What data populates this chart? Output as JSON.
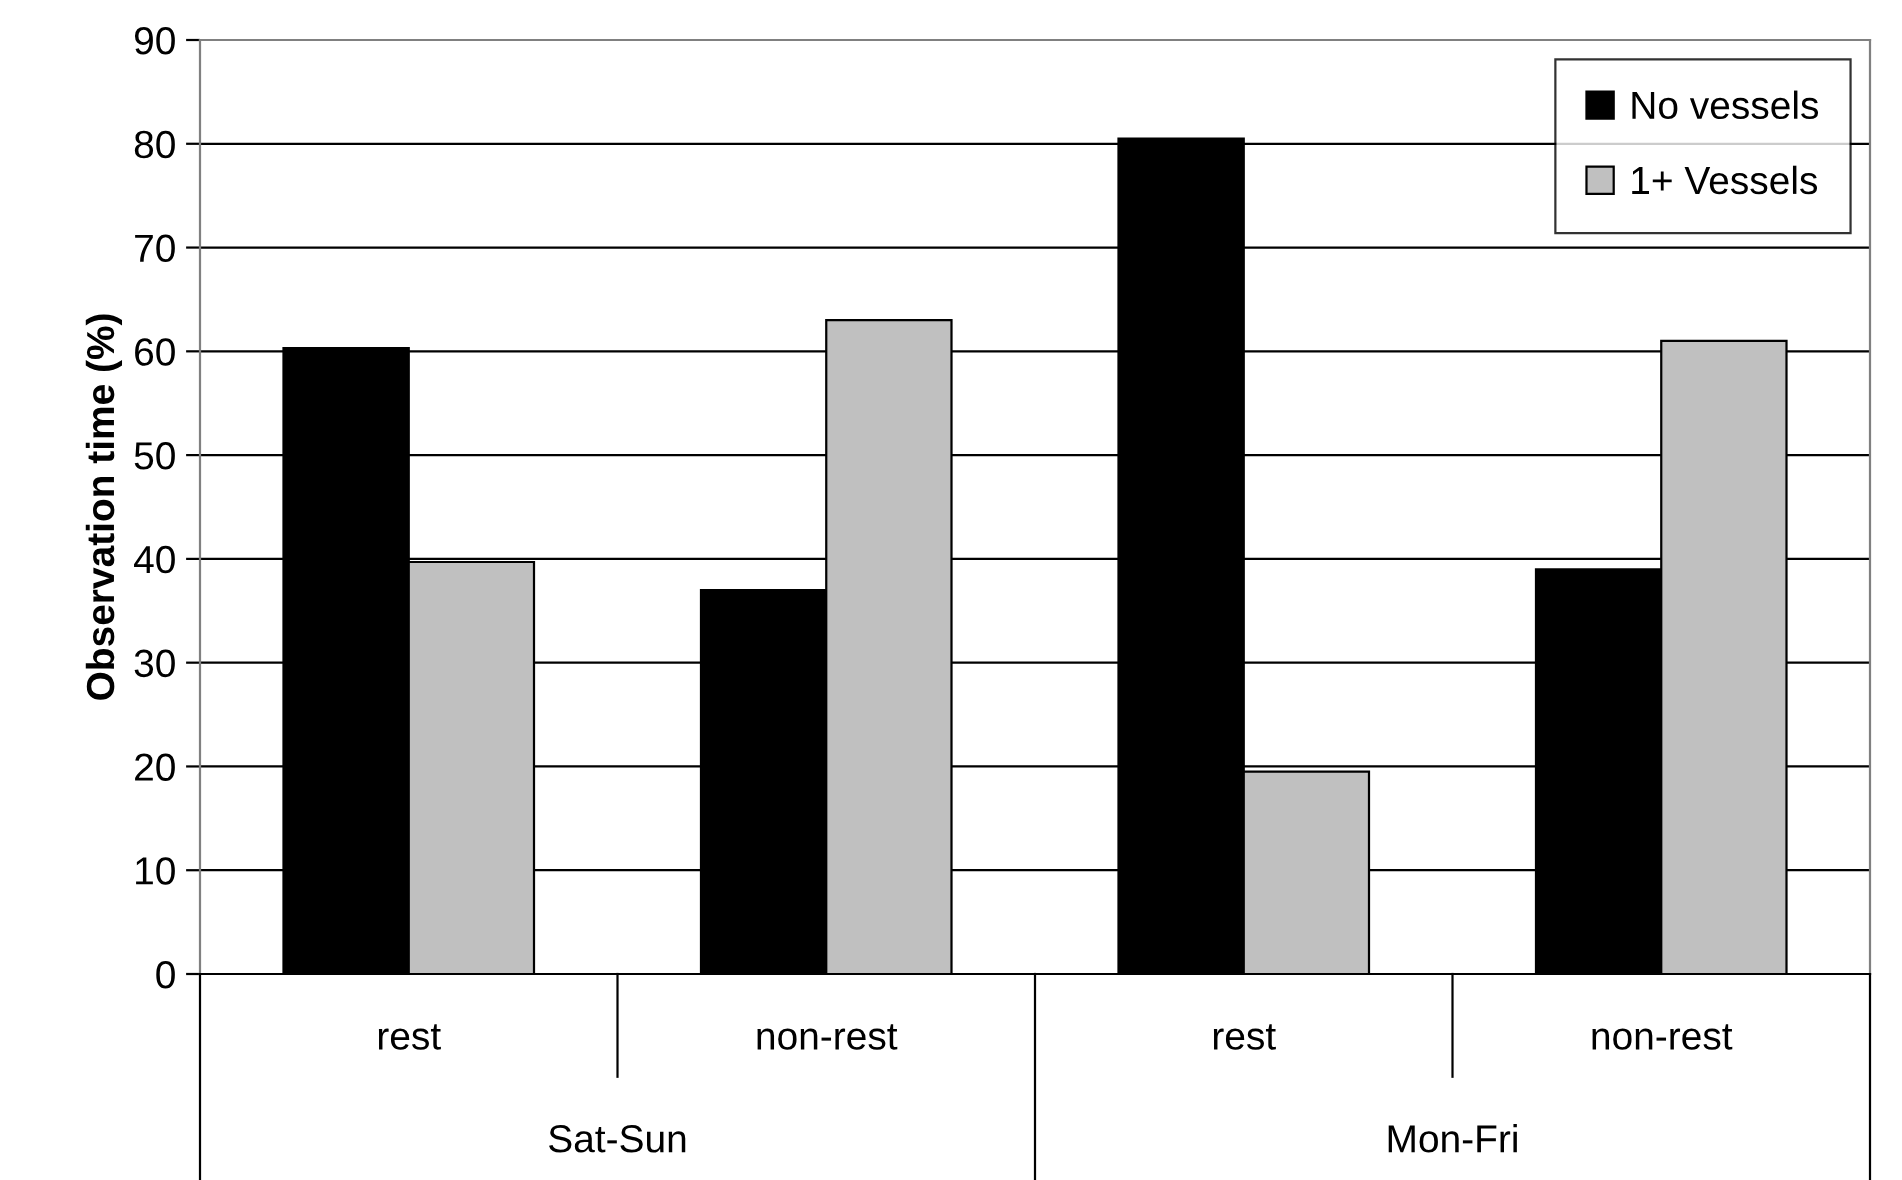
{
  "chart_data": {
    "type": "bar",
    "ylabel": "Observation time (%)",
    "categories": [
      "rest",
      "non-rest",
      "rest",
      "non-rest"
    ],
    "series": [
      {
        "name": "No vessels",
        "color": "#000000",
        "values": [
          60.3,
          37,
          80.5,
          39
        ]
      },
      {
        "name": "1+ Vessels",
        "color": "#c0c0c0",
        "values": [
          39.7,
          63,
          19.5,
          61
        ]
      }
    ],
    "annotations": [
      "Sat-Sun",
      "Mon-Fri"
    ],
    "ylim": [
      0,
      90
    ],
    "yticks": [
      0,
      10,
      20,
      30,
      40,
      50,
      60,
      70,
      80,
      90
    ],
    "grid": "y",
    "legend": "top right"
  }
}
